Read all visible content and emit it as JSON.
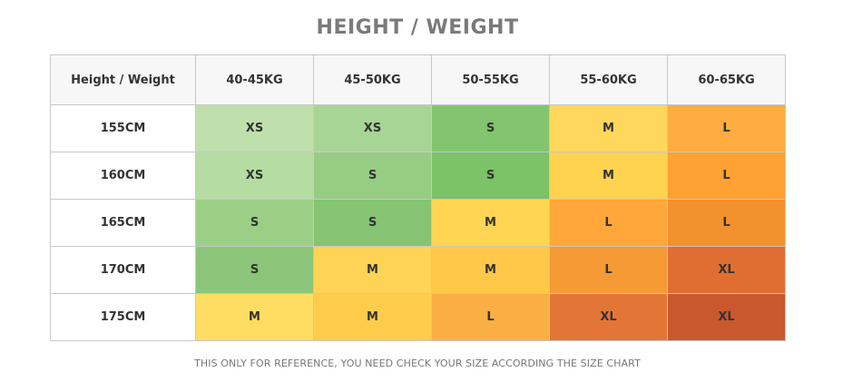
{
  "title": "HEIGHT / WEIGHT",
  "table": {
    "header": [
      "Height / Weight",
      "40-45KG",
      "45-50KG",
      "50-55KG",
      "55-60KG",
      "60-65KG"
    ],
    "rows": [
      {
        "label": "155CM",
        "cells": [
          {
            "size": "XS",
            "color": "#bfe0ac"
          },
          {
            "size": "XS",
            "color": "#a7d595"
          },
          {
            "size": "S",
            "color": "#82c56e"
          },
          {
            "size": "M",
            "color": "#ffd75d"
          },
          {
            "size": "L",
            "color": "#ffac40"
          }
        ]
      },
      {
        "label": "160CM",
        "cells": [
          {
            "size": "XS",
            "color": "#b5dca1"
          },
          {
            "size": "S",
            "color": "#96cd82"
          },
          {
            "size": "S",
            "color": "#7cc266"
          },
          {
            "size": "M",
            "color": "#ffd250"
          },
          {
            "size": "L",
            "color": "#ffa133"
          }
        ]
      },
      {
        "label": "165CM",
        "cells": [
          {
            "size": "S",
            "color": "#9bcf86"
          },
          {
            "size": "S",
            "color": "#86c372"
          },
          {
            "size": "M",
            "color": "#ffd553"
          },
          {
            "size": "L",
            "color": "#ffa73a"
          },
          {
            "size": "L",
            "color": "#f2922f"
          }
        ]
      },
      {
        "label": "170CM",
        "cells": [
          {
            "size": "S",
            "color": "#8bc57a"
          },
          {
            "size": "M",
            "color": "#ffd353"
          },
          {
            "size": "M",
            "color": "#ffc848"
          },
          {
            "size": "L",
            "color": "#f59a35"
          },
          {
            "size": "XL",
            "color": "#e06e33"
          }
        ]
      },
      {
        "label": "175CM",
        "cells": [
          {
            "size": "M",
            "color": "#ffdd63"
          },
          {
            "size": "M",
            "color": "#ffcd4b"
          },
          {
            "size": "L",
            "color": "#f9af43"
          },
          {
            "size": "XL",
            "color": "#e37637"
          },
          {
            "size": "XL",
            "color": "#c9582d"
          }
        ]
      }
    ]
  },
  "note": "THIS ONLY FOR REFERENCE, YOU NEED CHECK YOUR SIZE ACCORDING THE SIZE CHART"
}
